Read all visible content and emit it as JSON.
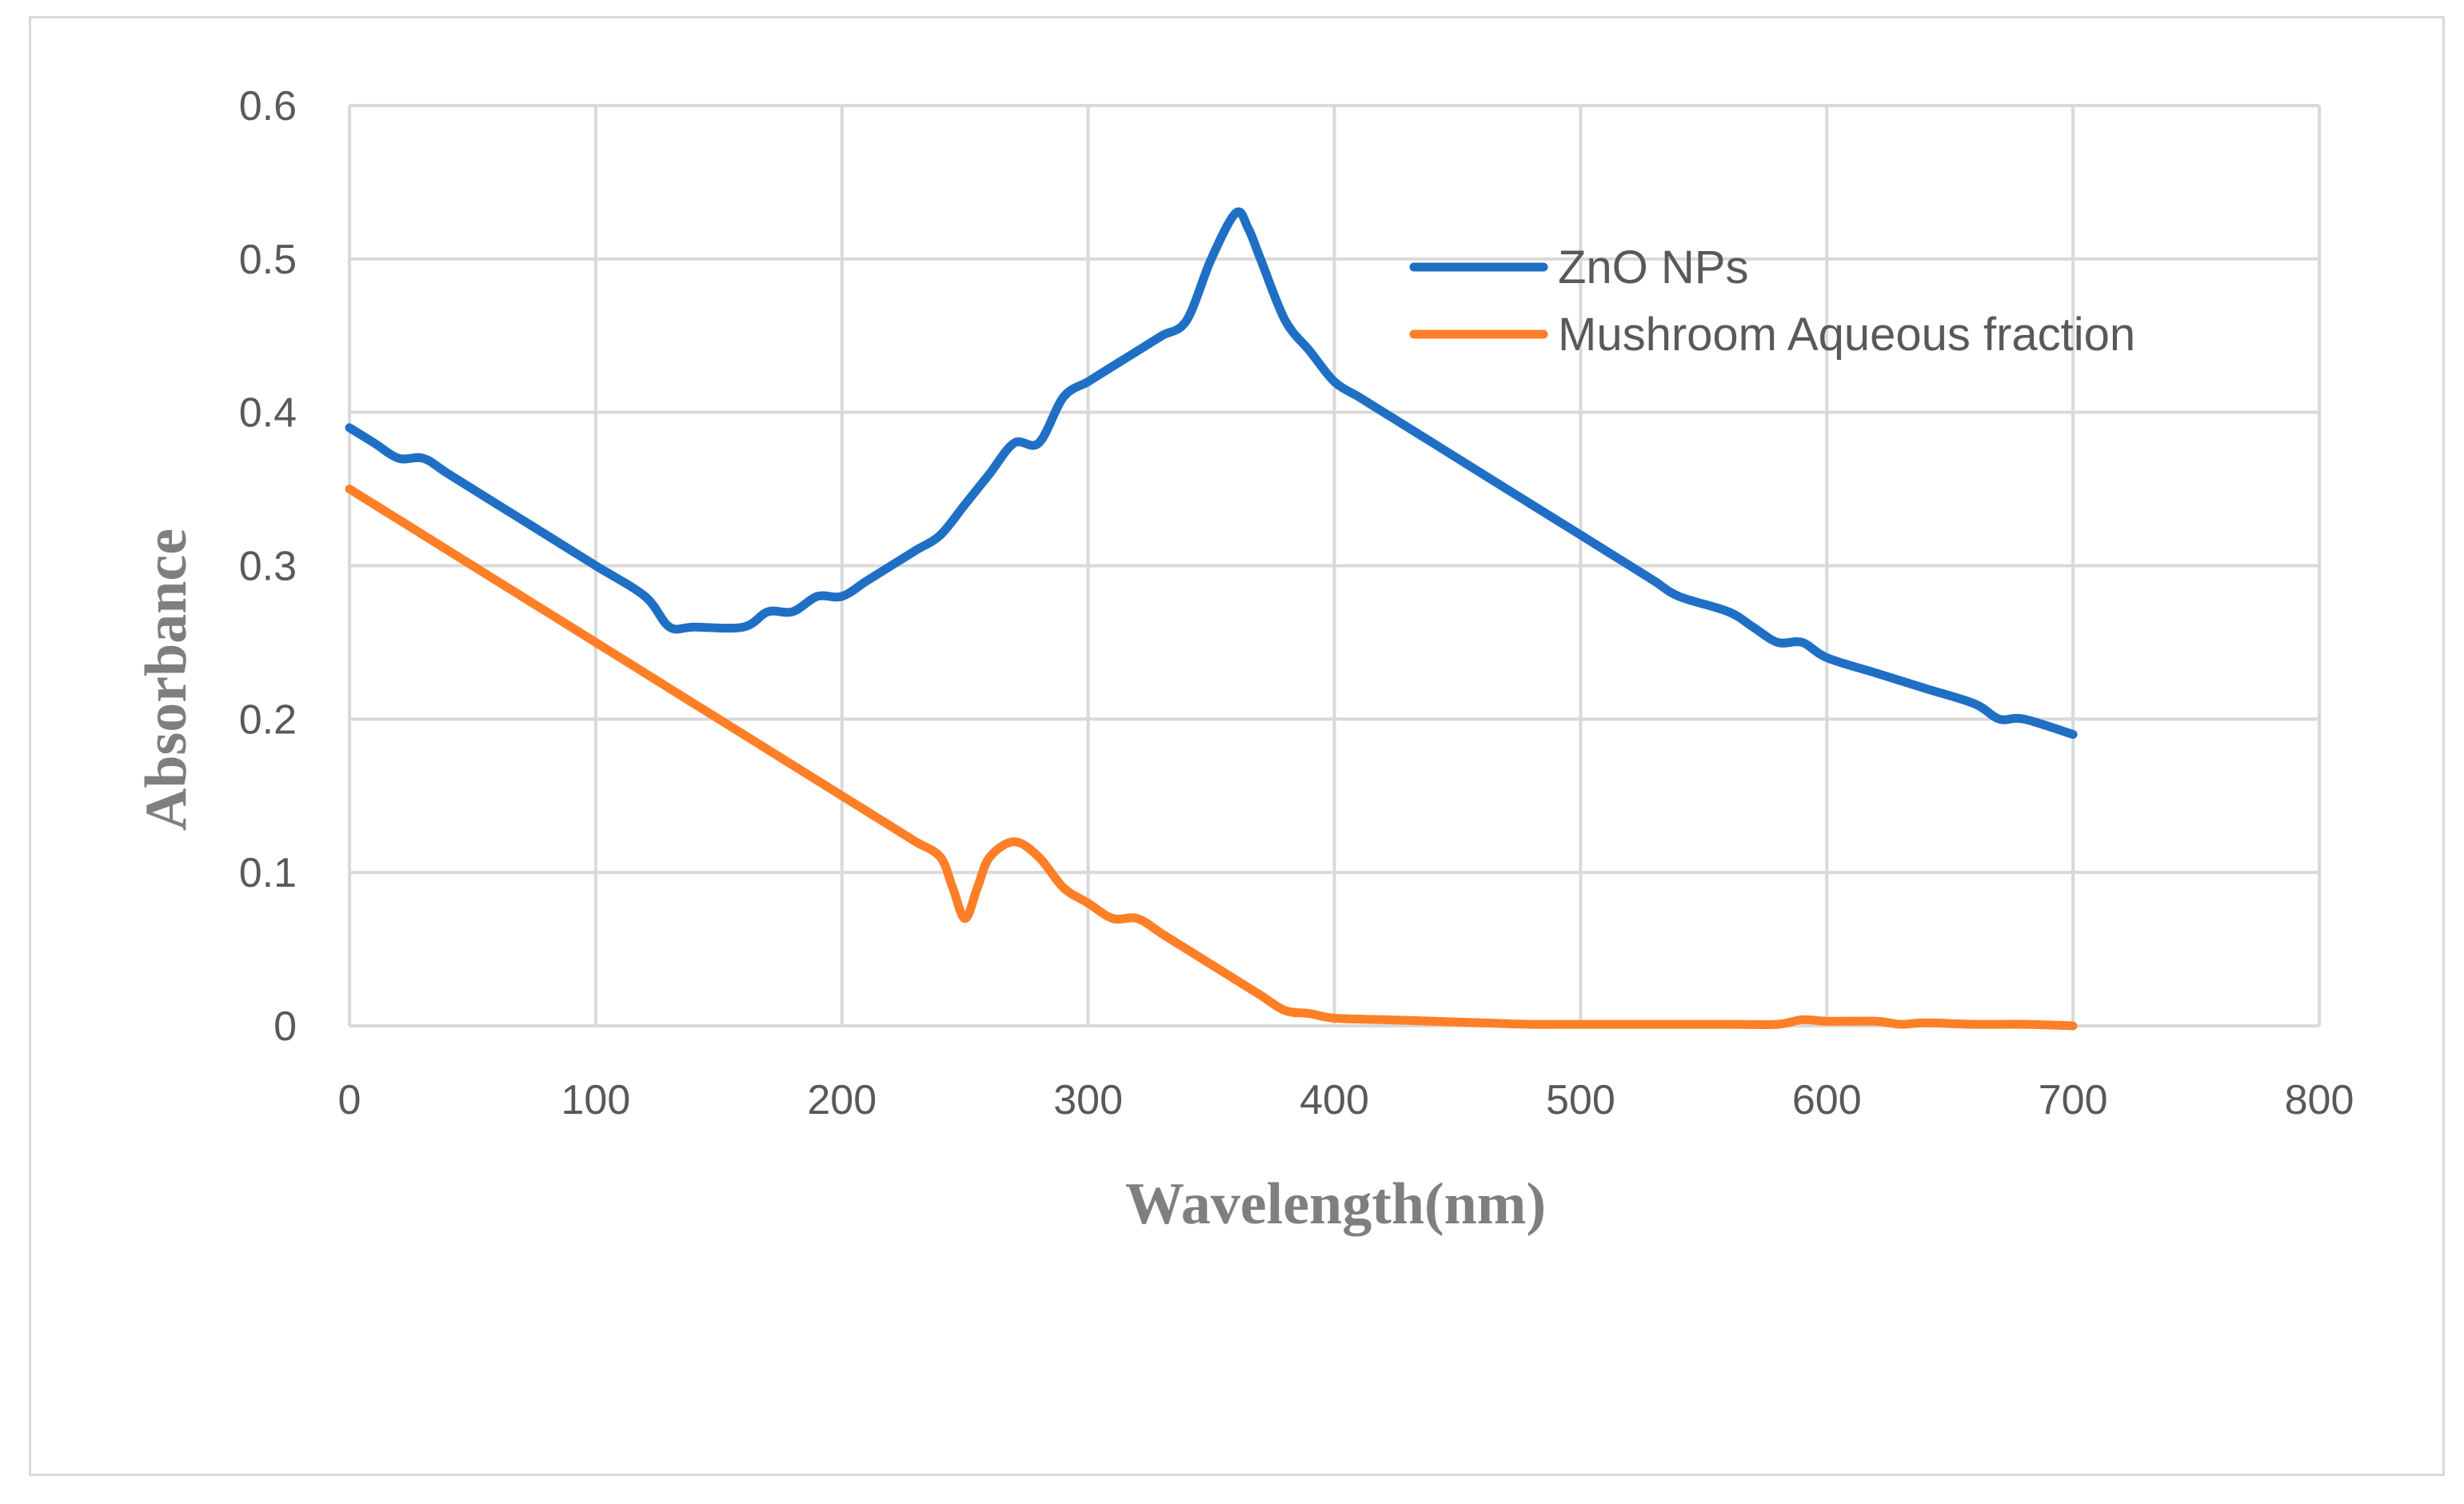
{
  "chart_data": {
    "type": "line",
    "title": "",
    "xlabel": "Wavelength(nm)",
    "ylabel": "Absorbance",
    "xlim": [
      0,
      800
    ],
    "ylim": [
      0,
      0.6
    ],
    "xticks": [
      0,
      100,
      200,
      300,
      400,
      500,
      600,
      700,
      800
    ],
    "yticks": [
      0,
      0.1,
      0.2,
      0.3,
      0.4,
      0.5,
      0.6
    ],
    "xtick_labels": [
      "0",
      "100",
      "200",
      "300",
      "400",
      "500",
      "600",
      "700",
      "800"
    ],
    "ytick_labels": [
      "0",
      "0.1",
      "0.2",
      "0.3",
      "0.4",
      "0.5",
      "0.6"
    ],
    "grid": true,
    "legend_position": "top-right",
    "series": [
      {
        "name": "ZnO NPs",
        "color": "#1f6fc5",
        "x": [
          0,
          10,
          20,
          30,
          40,
          60,
          80,
          100,
          120,
          130,
          140,
          160,
          170,
          180,
          190,
          200,
          210,
          220,
          230,
          240,
          250,
          260,
          270,
          280,
          290,
          300,
          310,
          320,
          330,
          340,
          350,
          360,
          365,
          370,
          380,
          390,
          400,
          410,
          420,
          440,
          460,
          480,
          500,
          510,
          520,
          530,
          540,
          560,
          570,
          580,
          590,
          600,
          620,
          640,
          660,
          670,
          680,
          700
        ],
        "values": [
          0.39,
          0.38,
          0.37,
          0.37,
          0.36,
          0.34,
          0.32,
          0.3,
          0.28,
          0.26,
          0.26,
          0.26,
          0.27,
          0.27,
          0.28,
          0.28,
          0.29,
          0.3,
          0.31,
          0.32,
          0.34,
          0.36,
          0.38,
          0.38,
          0.41,
          0.42,
          0.43,
          0.44,
          0.45,
          0.46,
          0.5,
          0.53,
          0.52,
          0.5,
          0.46,
          0.44,
          0.42,
          0.41,
          0.4,
          0.38,
          0.36,
          0.34,
          0.32,
          0.31,
          0.3,
          0.29,
          0.28,
          0.27,
          0.26,
          0.25,
          0.25,
          0.24,
          0.23,
          0.22,
          0.21,
          0.2,
          0.2,
          0.19
        ]
      },
      {
        "name": "Mushroom Aqueous fraction",
        "color": "#ff7f27",
        "x": [
          0,
          20,
          40,
          60,
          80,
          100,
          120,
          140,
          160,
          180,
          200,
          220,
          230,
          240,
          245,
          250,
          255,
          260,
          270,
          280,
          290,
          300,
          310,
          320,
          330,
          340,
          350,
          360,
          370,
          380,
          390,
          400,
          420,
          440,
          460,
          480,
          500,
          520,
          540,
          560,
          580,
          590,
          600,
          620,
          630,
          640,
          660,
          680,
          700
        ],
        "values": [
          0.35,
          0.33,
          0.31,
          0.29,
          0.27,
          0.25,
          0.23,
          0.21,
          0.19,
          0.17,
          0.15,
          0.13,
          0.12,
          0.11,
          0.09,
          0.07,
          0.09,
          0.11,
          0.12,
          0.11,
          0.09,
          0.08,
          0.07,
          0.07,
          0.06,
          0.05,
          0.04,
          0.03,
          0.02,
          0.01,
          0.008,
          0.005,
          0.004,
          0.003,
          0.002,
          0.001,
          0.001,
          0.001,
          0.001,
          0.001,
          0.001,
          0.004,
          0.003,
          0.003,
          0.001,
          0.002,
          0.001,
          0.001,
          0.0
        ]
      }
    ]
  }
}
